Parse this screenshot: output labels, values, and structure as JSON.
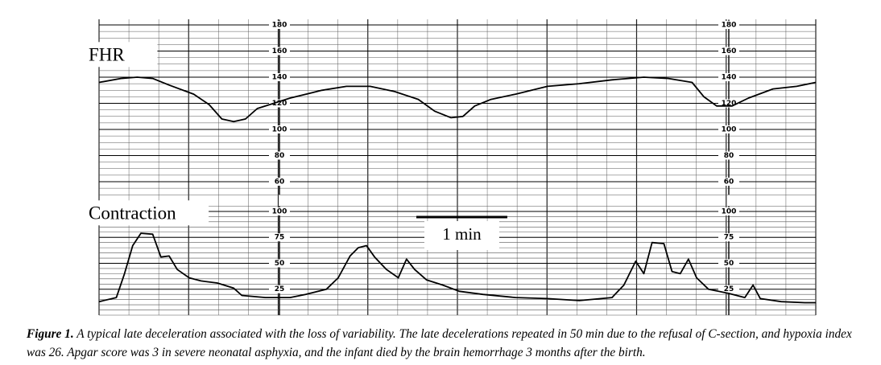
{
  "chart_data": [
    {
      "type": "line",
      "title": "FHR",
      "color": "#000000",
      "grid": true,
      "x": [
        0,
        0.24,
        0.42,
        0.59,
        0.77,
        1.04,
        1.21,
        1.35,
        1.48,
        1.61,
        1.74,
        1.92,
        2.1,
        2.45,
        2.72,
        2.98,
        3.25,
        3.51,
        3.69,
        3.87,
        4.0,
        4.13,
        4.31,
        4.58,
        4.93,
        5.28,
        5.64,
        5.99,
        6.26,
        6.52,
        6.65,
        6.79,
        6.96,
        7.14,
        7.41,
        7.67,
        7.88
      ],
      "values": [
        136,
        139,
        140,
        139,
        134,
        127,
        119,
        108,
        106,
        108,
        116,
        120,
        124,
        130,
        133,
        133,
        129,
        123,
        114,
        109,
        110,
        118,
        123,
        127,
        133,
        135,
        138,
        140,
        139,
        136,
        125,
        118,
        118,
        124,
        131,
        133,
        136
      ],
      "xlim": [
        0,
        7.88
      ],
      "ylim": [
        50,
        184
      ],
      "yticks": [
        60,
        80,
        100,
        120,
        140,
        160,
        180
      ]
    },
    {
      "type": "line",
      "title": "Contraction",
      "color": "#000000",
      "grid": true,
      "x": [
        0,
        0.19,
        0.28,
        0.37,
        0.46,
        0.59,
        0.68,
        0.77,
        0.86,
        0.99,
        1.12,
        1.3,
        1.48,
        1.57,
        1.83,
        2.1,
        2.27,
        2.5,
        2.63,
        2.76,
        2.85,
        2.94,
        3.03,
        3.16,
        3.29,
        3.38,
        3.47,
        3.6,
        3.78,
        3.96,
        4.22,
        4.58,
        4.93,
        5.28,
        5.64,
        5.77,
        5.9,
        5.99,
        6.08,
        6.21,
        6.3,
        6.39,
        6.48,
        6.57,
        6.7,
        6.92,
        7.1,
        7.19,
        7.27,
        7.5,
        7.76,
        7.88
      ],
      "values": [
        13,
        17,
        40,
        67,
        79,
        78,
        56,
        57,
        44,
        36,
        33,
        31,
        26,
        19,
        17,
        17,
        20,
        25,
        36,
        57,
        65,
        67,
        56,
        44,
        36,
        54,
        44,
        34,
        29,
        23,
        20,
        17,
        16,
        14,
        17,
        29,
        52,
        40,
        70,
        69,
        42,
        40,
        54,
        36,
        25,
        21,
        17,
        29,
        16,
        13,
        12,
        12
      ],
      "xlim": [
        0,
        7.88
      ],
      "ylim": [
        0,
        105
      ],
      "yticks": [
        25,
        50,
        75,
        100
      ],
      "scale_bar": {
        "value": 1,
        "label": "1 min"
      }
    }
  ],
  "caption": {
    "label": "Figure 1.",
    "text": "A typical late deceleration associated with the loss of variability. The late decelerations repeated in 50 min due to the refusal of C-section, and hypoxia index was 26. Apgar score was 3 in severe neonatal asphyxia, and the infant died by the brain hemorrhage 3 months after the birth."
  }
}
